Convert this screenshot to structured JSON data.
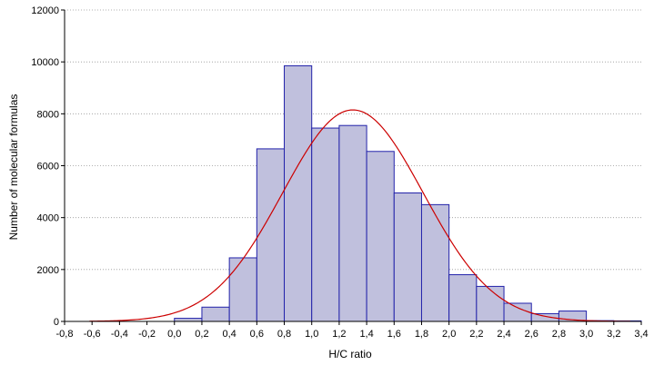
{
  "chart_data": {
    "type": "bar",
    "subtype": "histogram-with-normal-fit",
    "xlabel": "H/C ratio",
    "ylabel": "Number of molecular formulas",
    "xlim": [
      -0.8,
      3.4
    ],
    "ylim": [
      0,
      12000
    ],
    "x_ticks": [
      "-0,8",
      "-0,6",
      "-0,4",
      "-0,2",
      "0,0",
      "0,2",
      "0,4",
      "0,6",
      "0,8",
      "1,0",
      "1,2",
      "1,4",
      "1,6",
      "1,8",
      "2,0",
      "2,2",
      "2,4",
      "2,6",
      "2,8",
      "3,0",
      "3,2",
      "3,4"
    ],
    "y_ticks": [
      "0",
      "2000",
      "4000",
      "6000",
      "8000",
      "10000",
      "12000"
    ],
    "grid": "horizontal dotted",
    "bin_width": 0.2,
    "bins": [
      {
        "x0": 0.0,
        "x1": 0.2,
        "value": 120
      },
      {
        "x0": 0.2,
        "x1": 0.4,
        "value": 550
      },
      {
        "x0": 0.4,
        "x1": 0.6,
        "value": 2450
      },
      {
        "x0": 0.6,
        "x1": 0.8,
        "value": 6650
      },
      {
        "x0": 0.8,
        "x1": 1.0,
        "value": 9850
      },
      {
        "x0": 1.0,
        "x1": 1.2,
        "value": 7450
      },
      {
        "x0": 1.2,
        "x1": 1.4,
        "value": 7550
      },
      {
        "x0": 1.4,
        "x1": 1.6,
        "value": 6550
      },
      {
        "x0": 1.6,
        "x1": 1.8,
        "value": 4950
      },
      {
        "x0": 1.8,
        "x1": 2.0,
        "value": 4500
      },
      {
        "x0": 2.0,
        "x1": 2.2,
        "value": 1800
      },
      {
        "x0": 2.2,
        "x1": 2.4,
        "value": 1350
      },
      {
        "x0": 2.4,
        "x1": 2.6,
        "value": 700
      },
      {
        "x0": 2.6,
        "x1": 2.8,
        "value": 300
      },
      {
        "x0": 2.8,
        "x1": 3.0,
        "value": 400
      },
      {
        "x0": 3.0,
        "x1": 3.2,
        "value": 30
      },
      {
        "x0": 3.2,
        "x1": 3.4,
        "value": 20
      }
    ],
    "fit_curve": {
      "type": "normal",
      "mean": 1.3,
      "peak": 8150
    },
    "colors": {
      "bar_fill": "#c0c0dd",
      "bar_stroke": "#2222aa",
      "curve": "#cc0000",
      "grid": "#999999",
      "axis": "#000000"
    }
  }
}
